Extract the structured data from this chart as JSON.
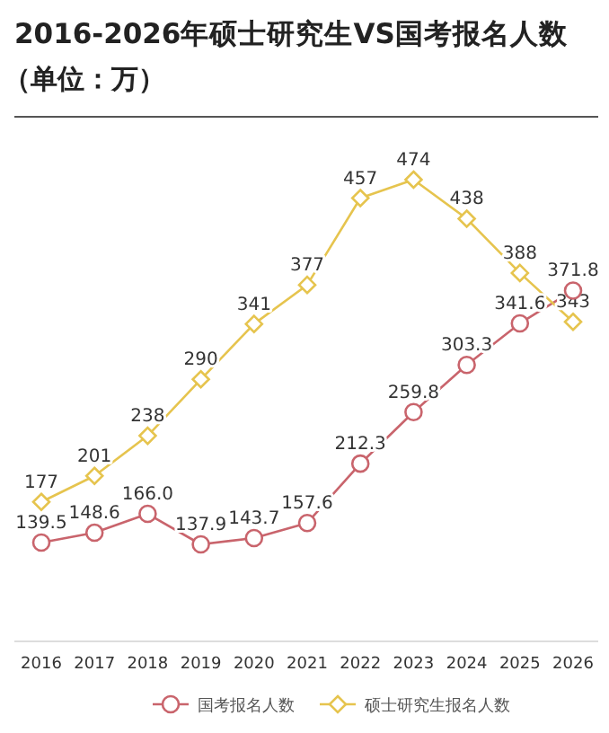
{
  "chart_data": {
    "type": "line",
    "title": "2016-2026年硕士研究生VS国考报名人数",
    "subtitle": "（单位：万）",
    "categories": [
      "2016",
      "2017",
      "2018",
      "2019",
      "2020",
      "2021",
      "2022",
      "2023",
      "2024",
      "2025",
      "2026"
    ],
    "series": [
      {
        "name": "国考报名人数",
        "color": "#c9646c",
        "marker": "circle",
        "values": [
          139.5,
          148.6,
          166.0,
          137.9,
          143.7,
          157.6,
          212.3,
          259.8,
          303.3,
          341.6,
          371.8
        ],
        "value_labels": [
          "139.5",
          "148.6",
          "166.0",
          "137.9",
          "143.7",
          "157.6",
          "212.3",
          "259.8",
          "303.3",
          "341.6",
          "371.8"
        ]
      },
      {
        "name": "硕士研究生报名人数",
        "color": "#e6c44e",
        "marker": "diamond",
        "values": [
          177,
          201,
          238,
          290,
          341,
          377,
          457,
          474,
          438,
          388,
          343
        ],
        "value_labels": [
          "177",
          "201",
          "238",
          "290",
          "341",
          "377",
          "457",
          "474",
          "438",
          "388",
          "343"
        ]
      }
    ],
    "legend": "bottom"
  }
}
